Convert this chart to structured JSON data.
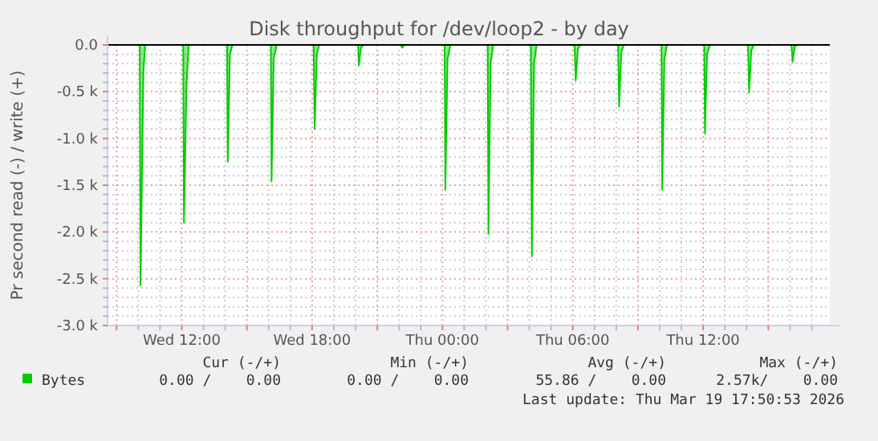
{
  "chart_data": {
    "type": "area",
    "title": "Disk throughput for /dev/loop2 - by day",
    "ylabel": "Pr second read (-) / write (+)",
    "x": [
      "2026-03-18T08:35",
      "2026-03-18T10:04",
      "2026-03-18T10:06",
      "2026-03-18T10:14",
      "2026-03-18T10:19",
      "2026-03-18T12:04",
      "2026-03-18T12:06",
      "2026-03-18T12:13",
      "2026-03-18T12:19",
      "2026-03-18T14:05",
      "2026-03-18T14:07",
      "2026-03-18T14:13",
      "2026-03-18T14:20",
      "2026-03-18T16:06",
      "2026-03-18T16:08",
      "2026-03-18T16:14",
      "2026-03-18T16:22",
      "2026-03-18T18:04",
      "2026-03-18T18:07",
      "2026-03-18T18:13",
      "2026-03-18T18:20",
      "2026-03-18T20:07",
      "2026-03-18T20:09",
      "2026-03-18T20:15",
      "2026-03-18T20:22",
      "2026-03-18T22:05",
      "2026-03-18T22:08",
      "2026-03-18T22:15",
      "2026-03-19T00:06",
      "2026-03-19T00:08",
      "2026-03-19T00:14",
      "2026-03-19T00:22",
      "2026-03-19T02:05",
      "2026-03-19T02:07",
      "2026-03-19T02:13",
      "2026-03-19T02:20",
      "2026-03-19T04:04",
      "2026-03-19T04:07",
      "2026-03-19T04:13",
      "2026-03-19T04:20",
      "2026-03-19T06:05",
      "2026-03-19T06:08",
      "2026-03-19T06:14",
      "2026-03-19T06:21",
      "2026-03-19T08:05",
      "2026-03-19T08:08",
      "2026-03-19T08:14",
      "2026-03-19T08:21",
      "2026-03-19T10:05",
      "2026-03-19T10:07",
      "2026-03-19T10:13",
      "2026-03-19T10:20",
      "2026-03-19T12:03",
      "2026-03-19T12:05",
      "2026-03-19T12:11",
      "2026-03-19T12:19",
      "2026-03-19T14:04",
      "2026-03-19T14:07",
      "2026-03-19T14:13",
      "2026-03-19T14:20",
      "2026-03-19T16:04",
      "2026-03-19T16:07",
      "2026-03-19T16:13",
      "2026-03-19T16:20",
      "2026-03-19T17:50"
    ],
    "series": [
      {
        "name": "Bytes",
        "color": "#00cc00",
        "values": [
          0,
          0,
          -2570,
          -280,
          0,
          0,
          -1900,
          -450,
          0,
          0,
          -1250,
          -100,
          0,
          0,
          -1460,
          -150,
          0,
          0,
          -900,
          -100,
          0,
          0,
          -220,
          -30,
          0,
          0,
          -30,
          0,
          0,
          -1550,
          -150,
          0,
          0,
          -2020,
          -200,
          0,
          0,
          -2260,
          -200,
          0,
          0,
          -380,
          -50,
          0,
          0,
          -660,
          -80,
          0,
          0,
          -1550,
          -150,
          0,
          0,
          -950,
          -100,
          0,
          0,
          -510,
          -60,
          0,
          0,
          -180,
          -20,
          0,
          0
        ]
      }
    ],
    "xlim": [
      "2026-03-18T08:35",
      "2026-03-19T17:50"
    ],
    "xticks": [
      {
        "value": "2026-03-18T09:00",
        "label": null
      },
      {
        "value": "2026-03-18T10:00",
        "label": null
      },
      {
        "value": "2026-03-18T11:00",
        "label": null
      },
      {
        "value": "2026-03-18T12:00",
        "label": "Wed 12:00"
      },
      {
        "value": "2026-03-18T13:00",
        "label": null
      },
      {
        "value": "2026-03-18T14:00",
        "label": null
      },
      {
        "value": "2026-03-18T15:00",
        "label": null
      },
      {
        "value": "2026-03-18T16:00",
        "label": null
      },
      {
        "value": "2026-03-18T17:00",
        "label": null
      },
      {
        "value": "2026-03-18T18:00",
        "label": "Wed 18:00"
      },
      {
        "value": "2026-03-18T19:00",
        "label": null
      },
      {
        "value": "2026-03-18T20:00",
        "label": null
      },
      {
        "value": "2026-03-18T21:00",
        "label": null
      },
      {
        "value": "2026-03-18T22:00",
        "label": null
      },
      {
        "value": "2026-03-18T23:00",
        "label": null
      },
      {
        "value": "2026-03-19T00:00",
        "label": "Thu 00:00"
      },
      {
        "value": "2026-03-19T01:00",
        "label": null
      },
      {
        "value": "2026-03-19T02:00",
        "label": null
      },
      {
        "value": "2026-03-19T03:00",
        "label": null
      },
      {
        "value": "2026-03-19T04:00",
        "label": null
      },
      {
        "value": "2026-03-19T05:00",
        "label": null
      },
      {
        "value": "2026-03-19T06:00",
        "label": "Thu 06:00"
      },
      {
        "value": "2026-03-19T07:00",
        "label": null
      },
      {
        "value": "2026-03-19T08:00",
        "label": null
      },
      {
        "value": "2026-03-19T09:00",
        "label": null
      },
      {
        "value": "2026-03-19T10:00",
        "label": null
      },
      {
        "value": "2026-03-19T11:00",
        "label": null
      },
      {
        "value": "2026-03-19T12:00",
        "label": "Thu 12:00"
      },
      {
        "value": "2026-03-19T13:00",
        "label": null
      },
      {
        "value": "2026-03-19T14:00",
        "label": null
      },
      {
        "value": "2026-03-19T15:00",
        "label": null
      },
      {
        "value": "2026-03-19T16:00",
        "label": null
      },
      {
        "value": "2026-03-19T17:00",
        "label": null
      }
    ],
    "ylim": [
      -3000,
      0
    ],
    "yticks": [
      {
        "value": -3000,
        "label": "-3.0 k"
      },
      {
        "value": -2900,
        "label": null
      },
      {
        "value": -2800,
        "label": null
      },
      {
        "value": -2700,
        "label": null
      },
      {
        "value": -2600,
        "label": null
      },
      {
        "value": -2500,
        "label": "-2.5 k"
      },
      {
        "value": -2400,
        "label": null
      },
      {
        "value": -2300,
        "label": null
      },
      {
        "value": -2200,
        "label": null
      },
      {
        "value": -2100,
        "label": null
      },
      {
        "value": -2000,
        "label": "-2.0 k"
      },
      {
        "value": -1900,
        "label": null
      },
      {
        "value": -1800,
        "label": null
      },
      {
        "value": -1700,
        "label": null
      },
      {
        "value": -1600,
        "label": null
      },
      {
        "value": -1500,
        "label": "-1.5 k"
      },
      {
        "value": -1400,
        "label": null
      },
      {
        "value": -1300,
        "label": null
      },
      {
        "value": -1200,
        "label": null
      },
      {
        "value": -1100,
        "label": null
      },
      {
        "value": -1000,
        "label": "-1.0 k"
      },
      {
        "value": -900,
        "label": null
      },
      {
        "value": -800,
        "label": null
      },
      {
        "value": -700,
        "label": null
      },
      {
        "value": -600,
        "label": null
      },
      {
        "value": -500,
        "label": "-0.5 k"
      },
      {
        "value": -400,
        "label": null
      },
      {
        "value": -300,
        "label": null
      },
      {
        "value": -200,
        "label": null
      },
      {
        "value": -100,
        "label": null
      },
      {
        "value": 0,
        "label": "0.0"
      }
    ],
    "grid": true,
    "legend": "bottom left",
    "ref_lines": [
      {
        "axis": "y",
        "value": 0,
        "color": "#000000"
      }
    ],
    "annotations": [
      "Cur (-/+)",
      "Min (-/+)",
      "Avg (-/+)",
      "Max (-/+)",
      "0.00 /    0.00",
      "0.00 /    0.00",
      "55.86 /    0.00",
      "2.57k/    0.00",
      "Last update: Thu Mar 19 17:50:53 2026"
    ]
  }
}
